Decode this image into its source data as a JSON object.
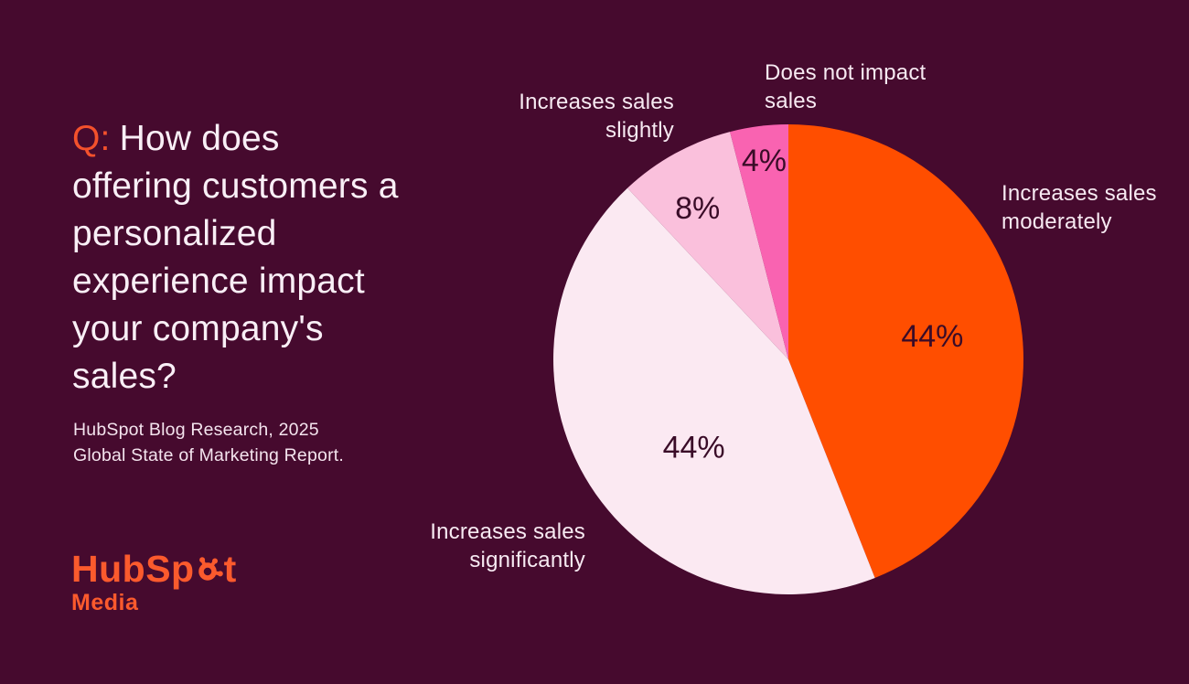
{
  "question": {
    "prefix": "Q:",
    "lines": [
      "How does",
      "offering customers a",
      "personalized",
      "experience impact",
      "your company's",
      "sales?"
    ]
  },
  "source_lines": [
    "HubSpot Blog Research, 2025",
    "Global State of Marketing Report."
  ],
  "logo": {
    "wordmark_start": "HubSp",
    "wordmark_end": "t",
    "sublabel": "Media"
  },
  "callouts": {
    "does_not_impact": "Does not impact\nsales",
    "slightly": "Increases sales\nslightly",
    "moderately": "Increases sales\nmoderately",
    "significantly": "Increases sales\nsignificantly"
  },
  "colors": {
    "background": "#460A2E",
    "question_text": "#F9EFF6",
    "accent_orange": "#F4512C",
    "logo_orange": "#FB5A2D",
    "callout_text": "#F7EAF2"
  },
  "chart_data": {
    "type": "pie",
    "title": "Q: How does offering customers a personalized experience impact your company's sales?",
    "source": "HubSpot Blog Research, 2025 Global State of Marketing Report.",
    "start_angle_deg": 0,
    "direction": "clockwise",
    "value_label_color": "#3A0C28",
    "slices": [
      {
        "label": "Increases sales moderately",
        "value": 44,
        "pct_label": "44%",
        "color": "#FF4E00"
      },
      {
        "label": "Increases sales significantly",
        "value": 44,
        "pct_label": "44%",
        "color": "#FBE9F2"
      },
      {
        "label": "Increases sales slightly",
        "value": 8,
        "pct_label": "8%",
        "color": "#FAC0DC"
      },
      {
        "label": "Does not impact sales",
        "value": 4,
        "pct_label": "4%",
        "color": "#F963B1"
      }
    ]
  }
}
